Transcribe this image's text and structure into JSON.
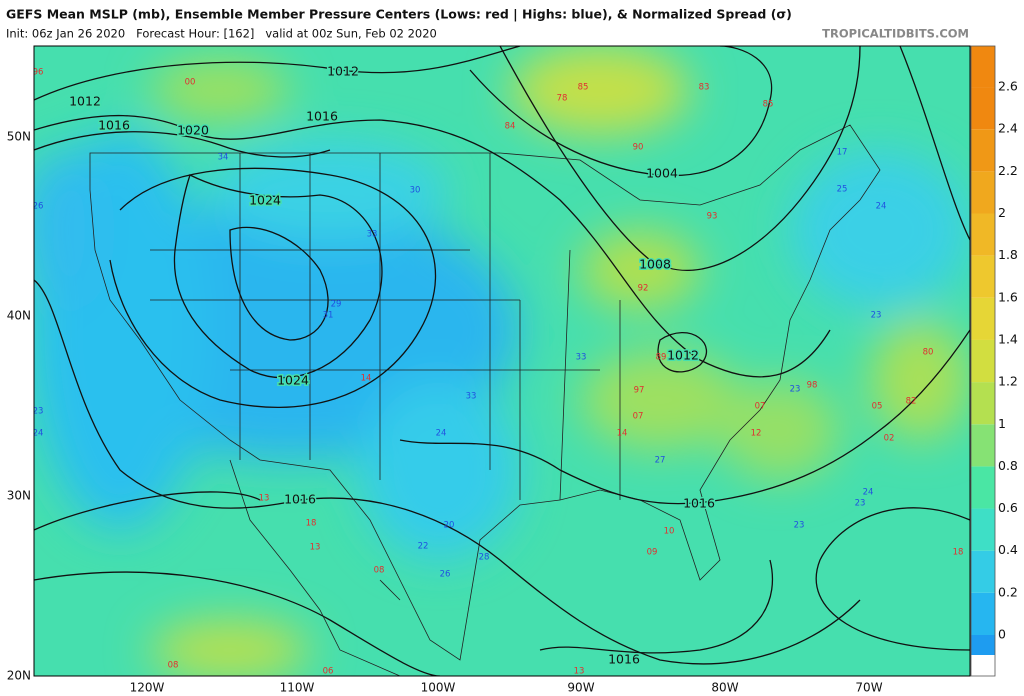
{
  "header": {
    "title": "GEFS Mean MSLP (mb), Ensemble Member Pressure Centers (Lows: red | Highs: blue), & Normalized Spread (σ)",
    "subtitle": "Init: 06z Jan 26 2020   Forecast Hour: [162]   valid at 00z Sun, Feb 02 2020",
    "watermark": "TROPICALTIDBITS.COM"
  },
  "map": {
    "longitude_labels": [
      "120W",
      "110W",
      "100W",
      "90W",
      "80W",
      "70W"
    ],
    "latitude_labels": [
      "50N",
      "40N",
      "30N",
      "20N"
    ],
    "isobar_labels": [
      "1012",
      "1012",
      "1016",
      "1020",
      "1016",
      "1024",
      "1004",
      "1008",
      "1012",
      "1024",
      "1016",
      "1016",
      "1016"
    ],
    "low_color": "#e03030",
    "high_color": "#2050e0",
    "lows": [
      "00",
      "78",
      "85",
      "83",
      "85",
      "90",
      "84",
      "93",
      "92",
      "89",
      "97",
      "07",
      "14",
      "98",
      "07",
      "12",
      "80",
      "82",
      "05",
      "02",
      "10",
      "09",
      "18",
      "13",
      "18",
      "13",
      "08",
      "08",
      "06",
      "13",
      "14",
      "96"
    ],
    "highs": [
      "34",
      "30",
      "26",
      "25",
      "17",
      "24",
      "33",
      "29",
      "31",
      "33",
      "23",
      "23",
      "33",
      "24",
      "27",
      "20",
      "22",
      "28",
      "26",
      "24",
      "23",
      "23",
      "24",
      "23"
    ]
  },
  "colorbar": {
    "labels": [
      "0",
      "0.2",
      "0.4",
      "0.6",
      "0.8",
      "1",
      "1.2",
      "1.4",
      "1.6",
      "1.8",
      "2",
      "2.2",
      "2.4",
      "2.6"
    ]
  }
}
